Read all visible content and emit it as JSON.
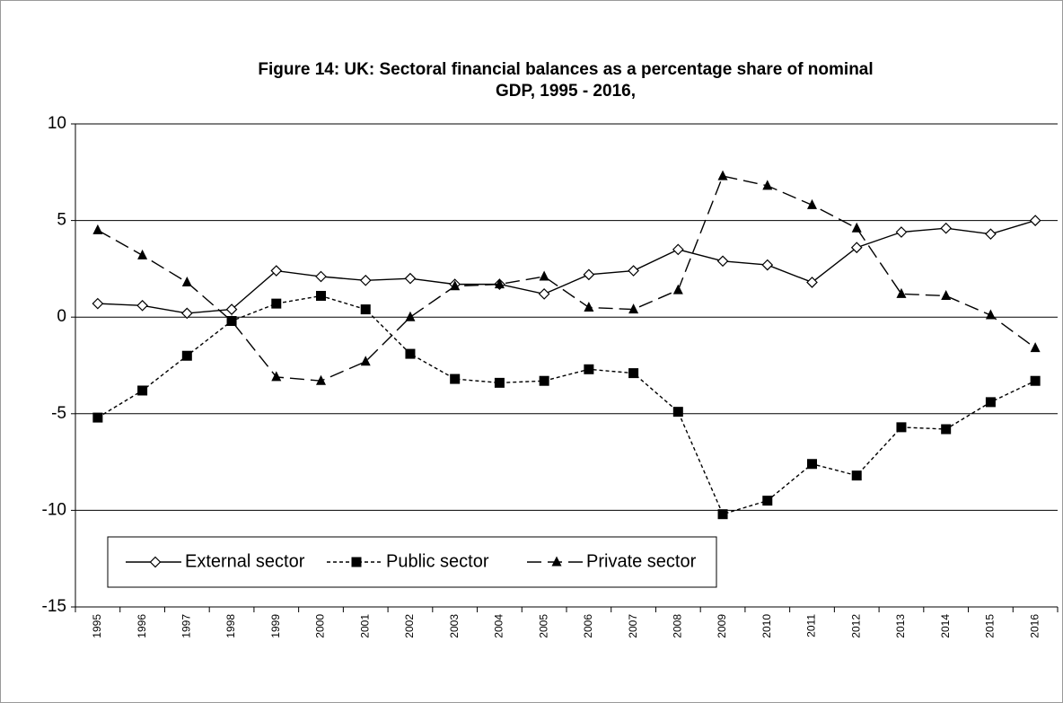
{
  "chart_data": {
    "type": "line",
    "title": "Figure 14: UK: Sectoral financial balances as a percentage share of nominal",
    "subtitle": "GDP, 1995 - 2016,",
    "categories": [
      "1995",
      "1996",
      "1997",
      "1998",
      "1999",
      "2000",
      "2001",
      "2002",
      "2003",
      "2004",
      "2005",
      "2006",
      "2007",
      "2008",
      "2009",
      "2010",
      "2011",
      "2012",
      "2013",
      "2014",
      "2015",
      "2016"
    ],
    "series": [
      {
        "name": "External sector",
        "color": "#000000",
        "marker": "diamond",
        "dash": "solid",
        "values": [
          0.7,
          0.6,
          0.2,
          0.4,
          2.4,
          2.1,
          1.9,
          2.0,
          1.7,
          1.7,
          1.2,
          2.2,
          2.4,
          3.5,
          2.9,
          2.7,
          1.8,
          3.6,
          4.4,
          4.6,
          4.3,
          5.0
        ]
      },
      {
        "name": "Public sector",
        "color": "#000000",
        "marker": "square",
        "dash": "short",
        "values": [
          -5.2,
          -3.8,
          -2.0,
          -0.2,
          0.7,
          1.1,
          0.4,
          -1.9,
          -3.2,
          -3.4,
          -3.3,
          -2.7,
          -2.9,
          -4.9,
          -10.2,
          -9.5,
          -7.6,
          -8.2,
          -5.7,
          -5.8,
          -4.4,
          -3.3
        ]
      },
      {
        "name": "Private sector",
        "color": "#000000",
        "marker": "triangle",
        "dash": "long",
        "values": [
          4.5,
          3.2,
          1.8,
          -0.2,
          -3.1,
          -3.3,
          -2.3,
          0.0,
          1.6,
          1.7,
          2.1,
          0.5,
          0.4,
          1.4,
          7.3,
          6.8,
          5.8,
          4.6,
          1.2,
          1.1,
          0.1,
          -1.6
        ]
      }
    ],
    "ylim": [
      -15,
      10
    ],
    "yticks": [
      -15,
      -10,
      -5,
      0,
      5,
      10
    ],
    "grid": true,
    "legend": "bottom-left"
  }
}
